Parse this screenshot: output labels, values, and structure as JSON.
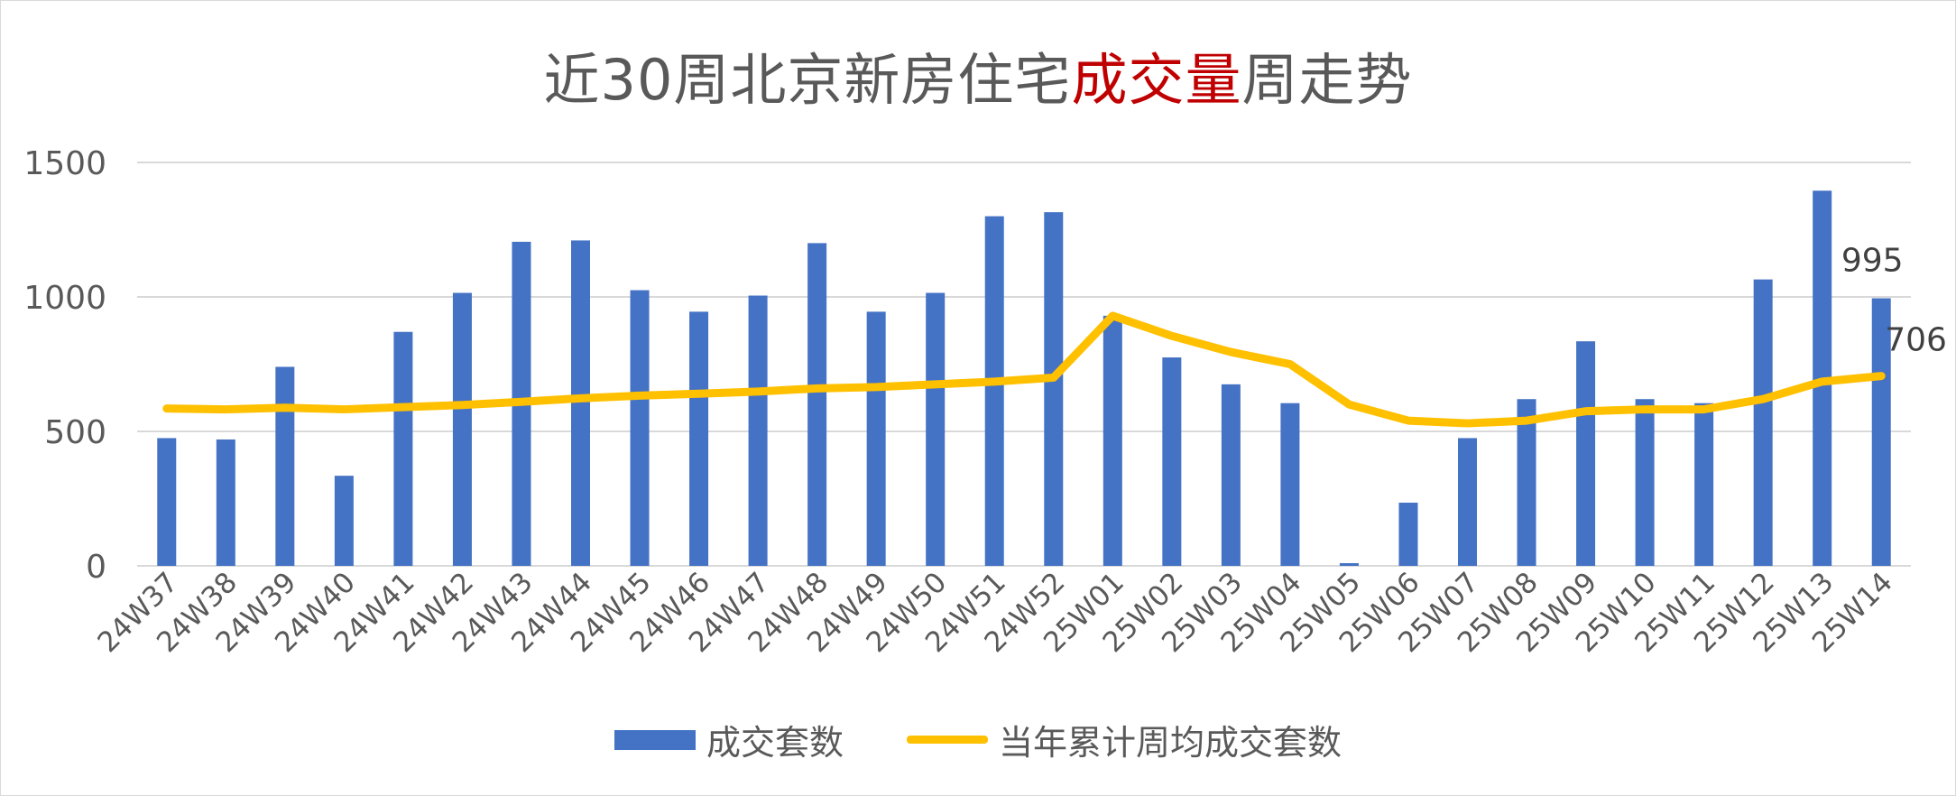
{
  "title": {
    "prefix": "近30周北京新房住宅",
    "highlight": "成交量",
    "suffix": "周走势"
  },
  "colors": {
    "bar": "#4472c4",
    "line": "#ffc000",
    "highlight": "#c00000",
    "grid": "#d9d9d9",
    "text": "#595959"
  },
  "legend": {
    "bar_label": "成交套数",
    "line_label": "当年累计周均成交套数"
  },
  "chart_data": {
    "type": "bar",
    "categories": [
      "24W37",
      "24W38",
      "24W39",
      "24W40",
      "24W41",
      "24W42",
      "24W43",
      "24W44",
      "24W45",
      "24W46",
      "24W47",
      "24W48",
      "24W49",
      "24W50",
      "24W51",
      "24W52",
      "25W01",
      "25W02",
      "25W03",
      "25W04",
      "25W05",
      "25W06",
      "25W07",
      "25W08",
      "25W09",
      "25W10",
      "25W11",
      "25W12",
      "25W13",
      "25W14"
    ],
    "series": [
      {
        "name": "成交套数",
        "type": "bar",
        "values": [
          475,
          470,
          740,
          335,
          870,
          1015,
          1205,
          1210,
          1025,
          945,
          1005,
          1200,
          945,
          1015,
          1300,
          1315,
          930,
          775,
          675,
          605,
          10,
          235,
          475,
          620,
          835,
          620,
          605,
          1065,
          1395,
          995
        ]
      },
      {
        "name": "当年累计周均成交套数",
        "type": "line",
        "values": [
          585,
          582,
          588,
          582,
          590,
          598,
          610,
          623,
          633,
          640,
          648,
          660,
          665,
          675,
          685,
          700,
          930,
          855,
          795,
          750,
          600,
          540,
          530,
          540,
          575,
          582,
          582,
          620,
          685,
          706
        ]
      }
    ],
    "ylim": [
      0,
      1500
    ],
    "yticks": [
      0,
      500,
      1000,
      1500
    ],
    "data_labels": [
      {
        "series": "成交套数",
        "category": "25W14",
        "text": "995"
      },
      {
        "series": "当年累计周均成交套数",
        "category": "25W14",
        "text": "706"
      }
    ],
    "grid": true,
    "legend_position": "bottom"
  }
}
